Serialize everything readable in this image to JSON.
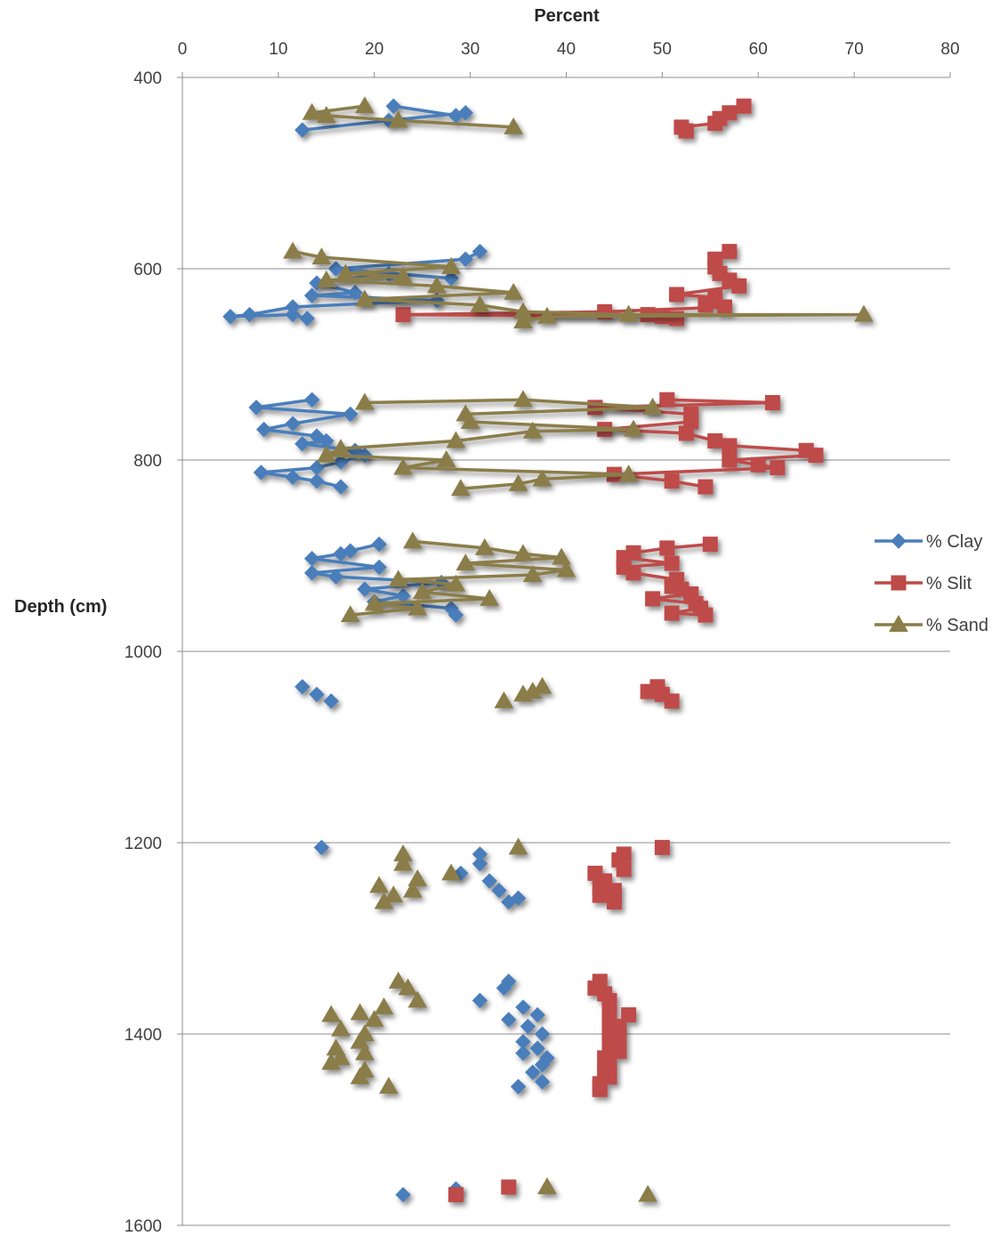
{
  "chart_data": {
    "type": "scatter",
    "title": "",
    "xlabel": "Percent",
    "ylabel": "Depth (cm)",
    "xlim": [
      0,
      80
    ],
    "ylim": [
      400,
      1600
    ],
    "y_reversed": true,
    "x_axis_position": "top",
    "x_ticks": [
      "0",
      "10",
      "20",
      "30",
      "40",
      "50",
      "60",
      "70",
      "80"
    ],
    "y_ticks": [
      "400",
      "600",
      "800",
      "1000",
      "1200",
      "1400",
      "1600"
    ],
    "gridlines": "horizontal",
    "legend_position": "right",
    "series": [
      {
        "name": "% Clay",
        "color": "#4a7ebb",
        "marker": "diamond",
        "segments": [
          [
            [
              22,
              430
            ],
            [
              28.5,
              440
            ],
            [
              29.5,
              437
            ],
            [
              21.5,
              445
            ],
            [
              12.5,
              455
            ]
          ],
          [
            [
              31,
              582
            ],
            [
              29.5,
              590
            ],
            [
              16,
              600
            ],
            [
              28,
              610
            ],
            [
              21.5,
              605
            ],
            [
              14,
              615
            ],
            [
              18,
              625
            ],
            [
              13.5,
              628
            ],
            [
              26.5,
              633
            ],
            [
              11.5,
              640
            ],
            [
              7,
              648
            ],
            [
              5,
              650
            ],
            [
              11.5,
              648
            ],
            [
              13,
              652
            ]
          ],
          [
            [
              13.5,
              737
            ],
            [
              7.7,
              745
            ],
            [
              17.5,
              752
            ],
            [
              11.5,
              762
            ],
            [
              8.5,
              768
            ],
            [
              14,
              775
            ],
            [
              15,
              780
            ],
            [
              12.5,
              783
            ],
            [
              18,
              790
            ],
            [
              19,
              795
            ],
            [
              16.5,
              802
            ],
            [
              14,
              808
            ],
            [
              8.2,
              813
            ],
            [
              11.5,
              818
            ],
            [
              14,
              822
            ],
            [
              16.5,
              828
            ]
          ],
          [
            [
              20.5,
              888
            ],
            [
              17.5,
              895
            ],
            [
              16.5,
              898
            ],
            [
              13.5,
              903
            ],
            [
              20.5,
              912
            ],
            [
              13.5,
              918
            ],
            [
              16,
              922
            ],
            [
              27,
              928
            ],
            [
              19,
              935
            ],
            [
              23,
              942
            ],
            [
              20,
              948
            ],
            [
              28,
              955
            ],
            [
              28.5,
              962
            ]
          ]
        ],
        "points": [
          [
            12.5,
            1037
          ],
          [
            14,
            1045
          ],
          [
            15.5,
            1052
          ],
          [
            14.5,
            1205
          ],
          [
            31,
            1212
          ],
          [
            31,
            1222
          ],
          [
            29,
            1232
          ],
          [
            32,
            1240
          ],
          [
            33,
            1250
          ],
          [
            35,
            1258
          ],
          [
            34,
            1262
          ],
          [
            34,
            1345
          ],
          [
            33.5,
            1352
          ],
          [
            31,
            1365
          ],
          [
            35.5,
            1372
          ],
          [
            37,
            1380
          ],
          [
            34,
            1385
          ],
          [
            36,
            1392
          ],
          [
            37.5,
            1400
          ],
          [
            35.5,
            1408
          ],
          [
            37,
            1415
          ],
          [
            35.5,
            1420
          ],
          [
            38,
            1425
          ],
          [
            37.5,
            1432
          ],
          [
            36.5,
            1440
          ],
          [
            37.5,
            1450
          ],
          [
            35,
            1455
          ],
          [
            23,
            1568
          ],
          [
            28.5,
            1562
          ]
        ]
      },
      {
        "name": "% Slit",
        "color": "#be4b48",
        "marker": "square",
        "segments": [
          [
            [
              58.5,
              430
            ],
            [
              57,
              437
            ],
            [
              56,
              443
            ],
            [
              55.5,
              448
            ],
            [
              52,
              452
            ],
            [
              52.5,
              456
            ]
          ],
          [
            [
              57,
              582
            ],
            [
              55.5,
              590
            ],
            [
              55.5,
              598
            ],
            [
              56,
              605
            ],
            [
              57,
              612
            ],
            [
              58,
              618
            ],
            [
              51.5,
              627
            ],
            [
              55.5,
              630
            ],
            [
              54.5,
              638
            ],
            [
              56.5,
              640
            ],
            [
              44,
              645
            ],
            [
              23,
              648
            ],
            [
              50,
              650
            ],
            [
              51.5,
              652
            ],
            [
              48.5,
              648
            ]
          ],
          [
            [
              50.5,
              737
            ],
            [
              61.5,
              740
            ],
            [
              43,
              745
            ],
            [
              53,
              752
            ],
            [
              53,
              760
            ],
            [
              44,
              768
            ],
            [
              52.5,
              772
            ],
            [
              55.5,
              780
            ],
            [
              57,
              785
            ],
            [
              65,
              790
            ],
            [
              66,
              795
            ],
            [
              57,
              800
            ],
            [
              60,
              805
            ],
            [
              62,
              808
            ],
            [
              45,
              815
            ],
            [
              51,
              822
            ],
            [
              54.5,
              828
            ]
          ],
          [
            [
              55,
              888
            ],
            [
              50.5,
              892
            ],
            [
              47,
              897
            ],
            [
              46,
              902
            ],
            [
              51,
              908
            ],
            [
              46,
              912
            ],
            [
              47,
              918
            ],
            [
              51.5,
              925
            ],
            [
              51,
              932
            ],
            [
              52,
              935
            ],
            [
              53,
              940
            ],
            [
              49,
              945
            ],
            [
              53.5,
              950
            ],
            [
              54,
              955
            ],
            [
              51,
              960
            ],
            [
              54.5,
              962
            ]
          ]
        ],
        "points": [
          [
            49.5,
            1037
          ],
          [
            48.5,
            1042
          ],
          [
            50,
            1045
          ],
          [
            51,
            1052
          ],
          [
            50,
            1205
          ],
          [
            46,
            1212
          ],
          [
            45.5,
            1218
          ],
          [
            46,
            1228
          ],
          [
            43,
            1232
          ],
          [
            44,
            1240
          ],
          [
            43.5,
            1245
          ],
          [
            45,
            1250
          ],
          [
            43.5,
            1255
          ],
          [
            45,
            1262
          ],
          [
            43.5,
            1345
          ],
          [
            43,
            1352
          ],
          [
            44,
            1358
          ],
          [
            44.5,
            1365
          ],
          [
            44.5,
            1372
          ],
          [
            46.5,
            1380
          ],
          [
            44.5,
            1385
          ],
          [
            45.5,
            1392
          ],
          [
            44.5,
            1400
          ],
          [
            45.5,
            1405
          ],
          [
            44.5,
            1410
          ],
          [
            45.5,
            1418
          ],
          [
            44,
            1425
          ],
          [
            44.5,
            1432
          ],
          [
            44,
            1440
          ],
          [
            44.5,
            1445
          ],
          [
            43.5,
            1452
          ],
          [
            43.5,
            1458
          ],
          [
            28.5,
            1568
          ],
          [
            34,
            1560
          ]
        ]
      },
      {
        "name": "% Sand",
        "color": "#8b7d48",
        "marker": "triangle",
        "segments": [
          [
            [
              19,
              430
            ],
            [
              13.5,
              437
            ],
            [
              15,
              440
            ],
            [
              22.5,
              445
            ],
            [
              34.5,
              452
            ]
          ],
          [
            [
              11.5,
              582
            ],
            [
              14.5,
              588
            ],
            [
              28,
              598
            ],
            [
              17,
              605
            ],
            [
              23,
              608
            ],
            [
              15,
              612
            ],
            [
              26.5,
              618
            ],
            [
              34.5,
              625
            ],
            [
              19,
              632
            ],
            [
              31,
              638
            ],
            [
              35.5,
              645
            ],
            [
              46.5,
              648
            ],
            [
              71,
              648
            ],
            [
              38,
              650
            ],
            [
              35.5,
              655
            ]
          ],
          [
            [
              19,
              740
            ],
            [
              35.5,
              737
            ],
            [
              49,
              745
            ],
            [
              29.5,
              752
            ],
            [
              30,
              760
            ],
            [
              47,
              768
            ],
            [
              36.5,
              770
            ],
            [
              28.5,
              780
            ],
            [
              16.5,
              788
            ],
            [
              15,
              795
            ],
            [
              27.5,
              800
            ],
            [
              23,
              808
            ],
            [
              46.5,
              815
            ],
            [
              37.5,
              820
            ],
            [
              35,
              825
            ],
            [
              29,
              830
            ]
          ],
          [
            [
              24,
              885
            ],
            [
              31.5,
              892
            ],
            [
              35.5,
              898
            ],
            [
              39.5,
              902
            ],
            [
              29.5,
              908
            ],
            [
              40,
              915
            ],
            [
              36.5,
              920
            ],
            [
              22.5,
              925
            ],
            [
              28.5,
              930
            ],
            [
              25,
              938
            ],
            [
              32,
              945
            ],
            [
              20,
              950
            ],
            [
              24.5,
              955
            ],
            [
              17.5,
              962
            ]
          ]
        ],
        "points": [
          [
            37.5,
            1037
          ],
          [
            36.5,
            1042
          ],
          [
            35.5,
            1045
          ],
          [
            33.5,
            1052
          ],
          [
            35,
            1205
          ],
          [
            23,
            1212
          ],
          [
            23,
            1222
          ],
          [
            28,
            1232
          ],
          [
            24.5,
            1238
          ],
          [
            20.5,
            1245
          ],
          [
            24,
            1250
          ],
          [
            22,
            1255
          ],
          [
            21,
            1262
          ],
          [
            22.5,
            1345
          ],
          [
            23.5,
            1352
          ],
          [
            24.5,
            1365
          ],
          [
            21,
            1372
          ],
          [
            15.5,
            1380
          ],
          [
            18.5,
            1378
          ],
          [
            20,
            1385
          ],
          [
            16.5,
            1395
          ],
          [
            19,
            1400
          ],
          [
            18.5,
            1408
          ],
          [
            16,
            1415
          ],
          [
            19,
            1420
          ],
          [
            16.5,
            1425
          ],
          [
            15.5,
            1430
          ],
          [
            19,
            1438
          ],
          [
            18.5,
            1445
          ],
          [
            21.5,
            1455
          ],
          [
            38,
            1560
          ],
          [
            48.5,
            1568
          ]
        ]
      }
    ]
  }
}
